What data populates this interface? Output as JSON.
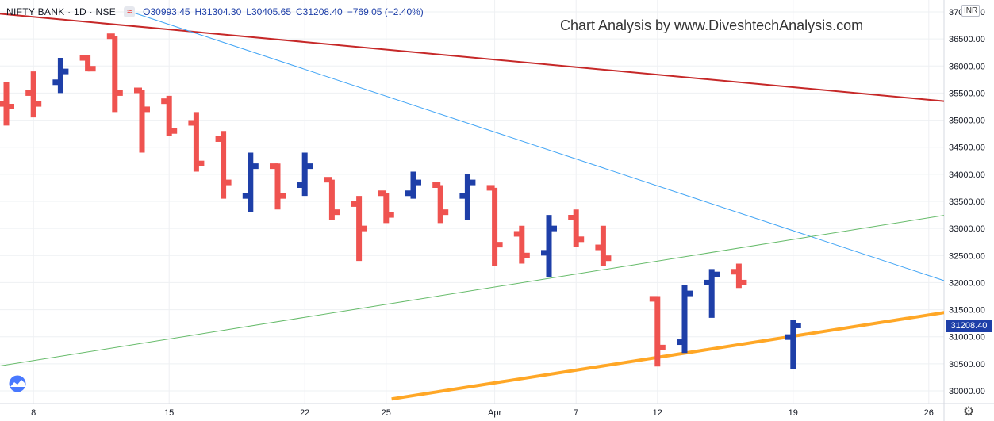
{
  "header": {
    "symbol": "NIFTY BANK · 1D · NSE",
    "flag_icon": "eye-wave-icon",
    "open": "O30993.45",
    "high": "H31304.30",
    "low": "L30405.65",
    "close": "C31208.40",
    "change": "−769.05 (−2.40%)"
  },
  "watermark": "Chart Analysis by www.DiveshtechAnalysis.com",
  "currency": "INR",
  "last_price": "31208.40",
  "colors": {
    "up": "#1e3fa8",
    "down": "#ef5350",
    "last_price": "#1e3fa8"
  },
  "icons": {
    "logo": "tradingview-logo-icon",
    "settings": "gear-icon"
  },
  "chart_data": {
    "type": "ohlc",
    "ylim": [
      29850,
      37050
    ],
    "y_ticks": [
      30000,
      30500,
      31000,
      31500,
      32000,
      32500,
      33000,
      33500,
      34000,
      34500,
      35000,
      35500,
      36000,
      36500,
      37000
    ],
    "y_tick_labels": [
      "30000.00",
      "30500.00",
      "31000.00",
      "31500.00",
      "32000.00",
      "32500.00",
      "33000.00",
      "33500.00",
      "34000.00",
      "34500.00",
      "35000.00",
      "35500.00",
      "36000.00",
      "36500.00",
      "37000.00"
    ],
    "x_labels": [
      {
        "label": "8",
        "index": 1
      },
      {
        "label": "15",
        "index": 6
      },
      {
        "label": "22",
        "index": 11
      },
      {
        "label": "25",
        "index": 14
      },
      {
        "label": "Apr",
        "index": 18
      },
      {
        "label": "7",
        "index": 21
      },
      {
        "label": "12",
        "index": 24
      },
      {
        "label": "19",
        "index": 29
      },
      {
        "label": "26",
        "index": 34
      }
    ],
    "bars": [
      {
        "o": 35300,
        "h": 35700,
        "l": 34900,
        "c": 35250
      },
      {
        "o": 35500,
        "h": 35900,
        "l": 35050,
        "c": 35300
      },
      {
        "o": 35700,
        "h": 36150,
        "l": 35500,
        "c": 35900
      },
      {
        "o": 36150,
        "h": 36200,
        "l": 35900,
        "c": 35950
      },
      {
        "o": 36550,
        "h": 36550,
        "l": 35150,
        "c": 35500
      },
      {
        "o": 35550,
        "h": 35550,
        "l": 34400,
        "c": 35200
      },
      {
        "o": 35350,
        "h": 35450,
        "l": 34700,
        "c": 34800
      },
      {
        "o": 34950,
        "h": 35150,
        "l": 34050,
        "c": 34200
      },
      {
        "o": 34650,
        "h": 34800,
        "l": 33550,
        "c": 33850
      },
      {
        "o": 33600,
        "h": 34400,
        "l": 33300,
        "c": 34150
      },
      {
        "o": 34150,
        "h": 34200,
        "l": 33350,
        "c": 33600
      },
      {
        "o": 33800,
        "h": 34400,
        "l": 33600,
        "c": 34150
      },
      {
        "o": 33900,
        "h": 33900,
        "l": 33150,
        "c": 33300
      },
      {
        "o": 33450,
        "h": 33600,
        "l": 32400,
        "c": 33000
      },
      {
        "o": 33650,
        "h": 33650,
        "l": 33100,
        "c": 33250
      },
      {
        "o": 33650,
        "h": 34050,
        "l": 33550,
        "c": 33850
      },
      {
        "o": 33800,
        "h": 33800,
        "l": 33100,
        "c": 33300
      },
      {
        "o": 33600,
        "h": 34000,
        "l": 33150,
        "c": 33850
      },
      {
        "o": 33750,
        "h": 33750,
        "l": 32300,
        "c": 32700
      },
      {
        "o": 32900,
        "h": 33050,
        "l": 32350,
        "c": 32500
      },
      {
        "o": 32550,
        "h": 33250,
        "l": 32100,
        "c": 33000
      },
      {
        "o": 33200,
        "h": 33350,
        "l": 32650,
        "c": 32800
      },
      {
        "o": 32650,
        "h": 33050,
        "l": 32300,
        "c": 32450
      },
      {
        "o": 31700,
        "h": 31750,
        "l": 30450,
        "c": 30800
      },
      {
        "o": 30900,
        "h": 31950,
        "l": 30700,
        "c": 31800
      },
      {
        "o": 32000,
        "h": 32250,
        "l": 31350,
        "c": 32150
      },
      {
        "o": 32200,
        "h": 32350,
        "l": 31900,
        "c": 32000
      },
      {
        "o": 30993.45,
        "h": 31304.3,
        "l": 30405.65,
        "c": 31208.4
      }
    ],
    "bar_x_index": [
      0,
      1,
      2,
      3,
      4,
      5,
      6,
      7,
      8,
      9,
      10,
      11,
      12,
      13,
      14,
      15,
      16,
      17,
      18,
      19,
      20,
      21,
      22,
      24,
      25,
      26,
      27,
      29
    ],
    "trendlines": [
      {
        "color": "#c62828",
        "width": 2,
        "p1": {
          "index": -1,
          "y": 37000
        },
        "p2": {
          "index": 37.8,
          "y": 35200
        }
      },
      {
        "color": "#42a5f5",
        "width": 1,
        "p1": {
          "index": 4.6,
          "y": 37000
        },
        "p2": {
          "index": 37.8,
          "y": 31500
        }
      },
      {
        "color": "#66bb6a",
        "width": 1,
        "p1": {
          "index": -1,
          "y": 30400
        },
        "p2": {
          "index": 37.8,
          "y": 33500
        }
      },
      {
        "color": "#ffa726",
        "width": 4,
        "p1": {
          "index": 14.2,
          "y": 29850
        },
        "p2": {
          "index": 37.8,
          "y": 31700
        }
      }
    ]
  }
}
